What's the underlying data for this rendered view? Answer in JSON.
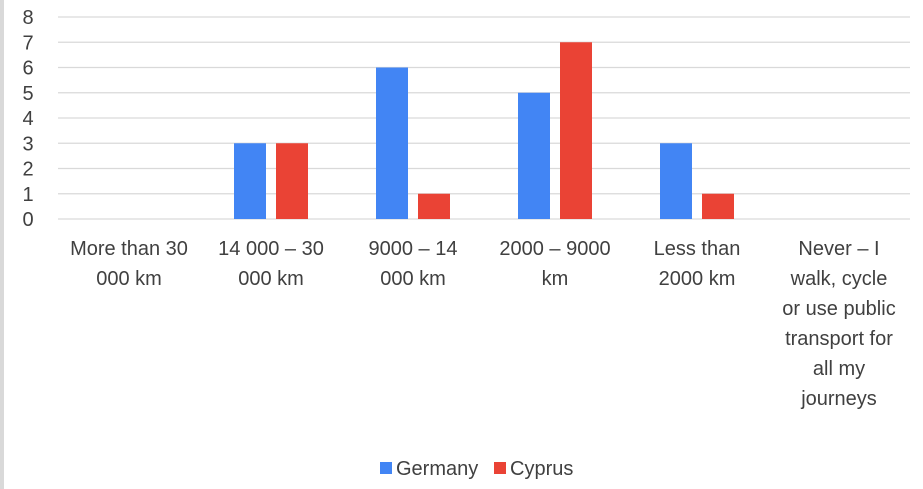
{
  "chart_data": {
    "type": "bar",
    "title": "",
    "xlabel": "",
    "ylabel": "",
    "ylim": [
      0,
      8
    ],
    "yticks": [
      0,
      1,
      2,
      3,
      4,
      5,
      6,
      7,
      8
    ],
    "grid": true,
    "legend_position": "bottom",
    "categories": [
      [
        "More than 30",
        "000 km"
      ],
      [
        "14 000 – 30",
        "000 km"
      ],
      [
        "9000 – 14",
        "000 km"
      ],
      [
        "2000 – 9000",
        "km"
      ],
      [
        "Less than",
        "2000 km"
      ],
      [
        "Never – I",
        "walk, cycle",
        "or use public",
        "transport for",
        "all my",
        "journeys"
      ]
    ],
    "series": [
      {
        "name": "Germany",
        "color": "#4285f4",
        "values": [
          0,
          3,
          6,
          5,
          3,
          0
        ]
      },
      {
        "name": "Cyprus",
        "color": "#ea4335",
        "values": [
          0,
          3,
          1,
          7,
          1,
          0
        ]
      }
    ]
  }
}
